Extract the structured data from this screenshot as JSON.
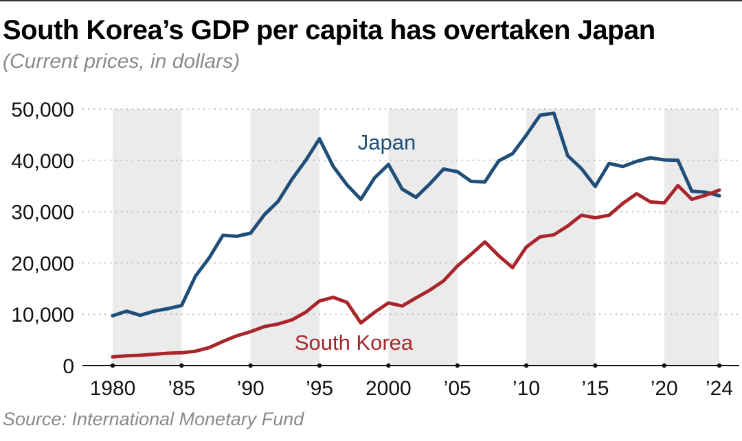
{
  "header": {
    "title": "South Korea’s GDP per capita has overtaken Japan",
    "subtitle": "(Current prices, in dollars)"
  },
  "footer": {
    "source": "Source: International Monetary Fund"
  },
  "colors": {
    "japan": "#1f4e79",
    "south_korea": "#a8262b",
    "shade": "#ebebeb",
    "grid": "#bdbdbd",
    "axis": "#111111"
  },
  "chart_data": {
    "type": "line",
    "title": "South Korea’s GDP per capita has overtaken Japan",
    "subtitle": "(Current prices, in dollars)",
    "xlabel": "",
    "ylabel": "",
    "xlim": [
      1980,
      2024
    ],
    "ylim": [
      0,
      50000
    ],
    "grid": true,
    "x_ticks": [
      {
        "value": 1980,
        "label": "1980"
      },
      {
        "value": 1985,
        "label": "’85"
      },
      {
        "value": 1990,
        "label": "’90"
      },
      {
        "value": 1995,
        "label": "’95"
      },
      {
        "value": 2000,
        "label": "2000"
      },
      {
        "value": 2005,
        "label": "’05"
      },
      {
        "value": 2010,
        "label": "’10"
      },
      {
        "value": 2015,
        "label": "’15"
      },
      {
        "value": 2020,
        "label": "’20"
      },
      {
        "value": 2024,
        "label": "’24"
      }
    ],
    "y_ticks": [
      {
        "value": 0,
        "label": "0"
      },
      {
        "value": 10000,
        "label": "10,000"
      },
      {
        "value": 20000,
        "label": "20,000"
      },
      {
        "value": 30000,
        "label": "30,000"
      },
      {
        "value": 40000,
        "label": "40,000"
      },
      {
        "value": 50000,
        "label": "50,000"
      }
    ],
    "shaded_periods": [
      [
        1980,
        1985
      ],
      [
        1990,
        1995
      ],
      [
        2000,
        2005
      ],
      [
        2010,
        2015
      ],
      [
        2020,
        2024
      ]
    ],
    "x": [
      1980,
      1981,
      1982,
      1983,
      1984,
      1985,
      1986,
      1987,
      1988,
      1989,
      1990,
      1991,
      1992,
      1993,
      1994,
      1995,
      1996,
      1997,
      1998,
      1999,
      2000,
      2001,
      2002,
      2003,
      2004,
      2005,
      2006,
      2007,
      2008,
      2009,
      2010,
      2011,
      2012,
      2013,
      2014,
      2015,
      2016,
      2017,
      2018,
      2019,
      2020,
      2021,
      2022,
      2023,
      2024
    ],
    "series": [
      {
        "name": "Japan",
        "label_position": "above the line near 2003",
        "values": [
          9700,
          10600,
          9800,
          10600,
          11100,
          11700,
          17400,
          21000,
          25400,
          25200,
          25800,
          29400,
          32000,
          36300,
          40000,
          44200,
          38800,
          35200,
          32400,
          36600,
          39200,
          34400,
          32800,
          35400,
          38300,
          37800,
          35900,
          35800,
          39900,
          41300,
          44900,
          48800,
          49200,
          40900,
          38400,
          34900,
          39400,
          38800,
          39800,
          40500,
          40100,
          40000,
          34000,
          33800,
          33100
        ]
      },
      {
        "name": "South Korea",
        "label_position": "below the line near 2003",
        "values": [
          1700,
          1900,
          2000,
          2200,
          2400,
          2500,
          2800,
          3500,
          4700,
          5800,
          6600,
          7600,
          8100,
          8900,
          10400,
          12600,
          13300,
          12300,
          8300,
          10400,
          12200,
          11600,
          13200,
          14700,
          16500,
          19400,
          21700,
          24100,
          21400,
          19100,
          23100,
          25100,
          25500,
          27200,
          29300,
          28800,
          29300,
          31600,
          33500,
          31900,
          31700,
          35100,
          32400,
          33200,
          34200
        ]
      }
    ]
  }
}
